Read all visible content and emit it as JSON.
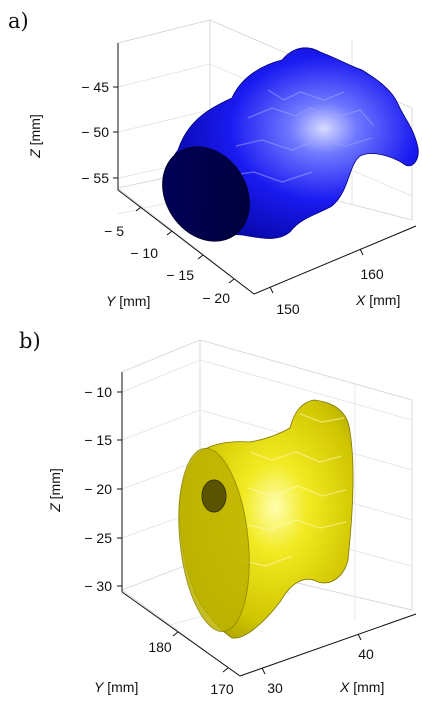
{
  "chart_data": [
    {
      "type": "surface3d",
      "panel_label": "a)",
      "surface_color": "#0000e6",
      "xlabel": {
        "var": "X",
        "unit": " [mm]"
      },
      "ylabel": {
        "var": "Y",
        "unit": " [mm]"
      },
      "zlabel": {
        "var": "Z",
        "unit": " [mm]"
      },
      "x_ticks": [
        "150",
        "160"
      ],
      "y_ticks": [
        "− 5",
        "− 10",
        "− 15",
        "− 20"
      ],
      "z_ticks": [
        "− 45",
        "− 50",
        "− 55"
      ],
      "x_tick_values": [
        150,
        160
      ],
      "y_tick_values": [
        -5,
        -10,
        -15,
        -20
      ],
      "z_tick_values": [
        -45,
        -50,
        -55
      ],
      "grid": true
    },
    {
      "type": "surface3d",
      "panel_label": "b)",
      "surface_color": "#d8d000",
      "xlabel": {
        "var": "X",
        "unit": " [mm]"
      },
      "ylabel": {
        "var": "Y",
        "unit": " [mm]"
      },
      "zlabel": {
        "var": "Z",
        "unit": " [mm]"
      },
      "x_ticks": [
        "30",
        "40"
      ],
      "y_ticks": [
        "180",
        "170"
      ],
      "z_ticks": [
        "− 10",
        "− 15",
        "− 20",
        "− 25",
        "− 30"
      ],
      "x_tick_values": [
        30,
        40
      ],
      "y_tick_values": [
        180,
        170
      ],
      "z_tick_values": [
        -10,
        -15,
        -20,
        -25,
        -30
      ],
      "grid": true
    }
  ]
}
